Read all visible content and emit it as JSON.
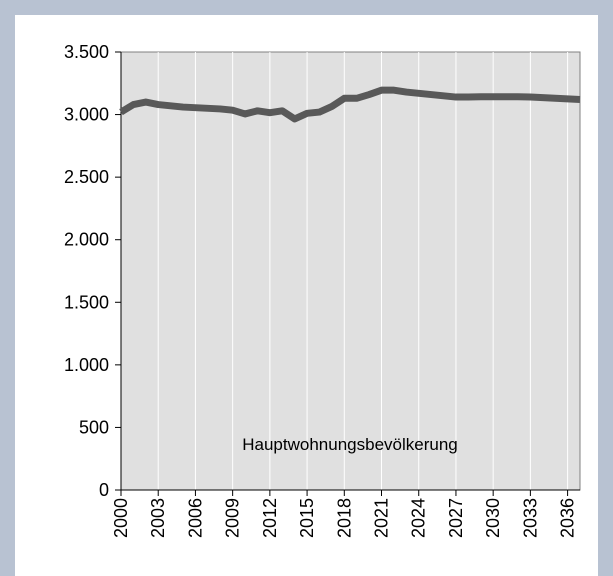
{
  "chart_data": {
    "type": "line",
    "x": [
      2000,
      2001,
      2002,
      2003,
      2004,
      2005,
      2006,
      2007,
      2008,
      2009,
      2010,
      2011,
      2012,
      2013,
      2014,
      2015,
      2016,
      2017,
      2018,
      2019,
      2020,
      2021,
      2022,
      2023,
      2024,
      2025,
      2026,
      2027,
      2028,
      2029,
      2030,
      2031,
      2032,
      2033,
      2034,
      2035,
      2036,
      2037
    ],
    "series": [
      {
        "name": "Hauptwohnungsbevölkerung",
        "color": "#595959",
        "values": [
          3020,
          3080,
          3100,
          3080,
          3070,
          3060,
          3055,
          3050,
          3045,
          3035,
          3005,
          3030,
          3015,
          3030,
          2965,
          3010,
          3020,
          3065,
          3130,
          3130,
          3160,
          3195,
          3195,
          3180,
          3170,
          3160,
          3150,
          3140,
          3140,
          3142,
          3142,
          3142,
          3142,
          3140,
          3135,
          3130,
          3125,
          3120
        ]
      }
    ],
    "xlim": [
      2000,
      2037
    ],
    "xticks": [
      2000,
      2003,
      2006,
      2009,
      2012,
      2015,
      2018,
      2021,
      2024,
      2027,
      2030,
      2033,
      2036
    ],
    "ylim": [
      0,
      3500
    ],
    "yticks": [
      0,
      500,
      {
        "value": 1000,
        "label": "1.000"
      },
      {
        "value": 1500,
        "label": "1.500"
      },
      {
        "value": 2000,
        "label": "2.000"
      },
      {
        "value": 2500,
        "label": "2.500"
      },
      {
        "value": 3000,
        "label": "3.000"
      },
      {
        "value": 3500,
        "label": "3.500"
      }
    ],
    "grid": true
  }
}
